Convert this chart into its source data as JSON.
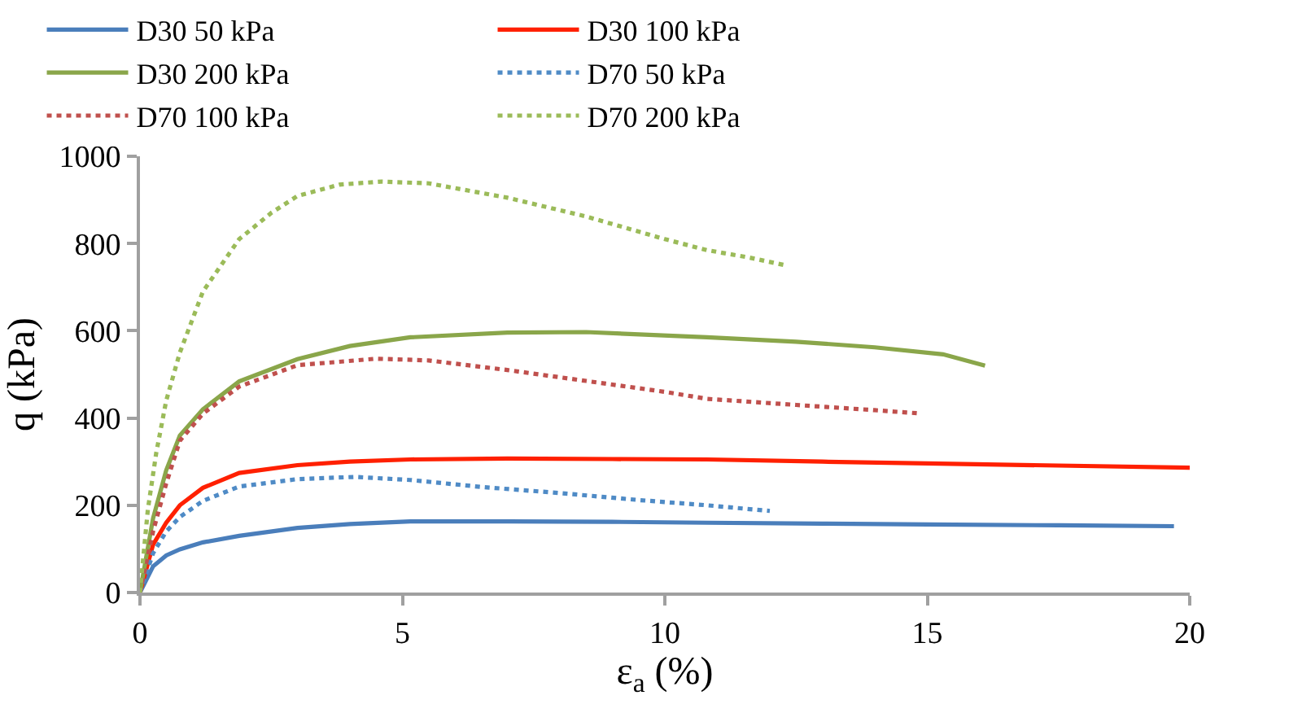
{
  "chart_data": {
    "type": "line",
    "xlabel": "ε$_{a}$ (%)",
    "ylabel": "q (kPa)",
    "xlim": [
      0,
      20
    ],
    "ylim": [
      0,
      1000
    ],
    "xticks": [
      0,
      5,
      10,
      15,
      20
    ],
    "yticks": [
      0,
      200,
      400,
      600,
      800,
      1000
    ],
    "grid": false,
    "legend": "top",
    "marker": "none",
    "series": [
      {
        "name": "D30 50 kPa",
        "color": "#4a7ebb",
        "line_style": "solid",
        "x": [
          0,
          0.25,
          0.5,
          0.76,
          1.2,
          1.89,
          3,
          4,
          5.15,
          7,
          9,
          10.8,
          13,
          15,
          17.5,
          19.7
        ],
        "values": [
          0,
          60,
          85,
          99,
          115,
          130,
          148,
          157,
          163,
          163,
          162,
          160,
          158,
          156,
          154,
          152
        ]
      },
      {
        "name": "D30 100 kPa",
        "color": "#ff2000",
        "line_style": "solid",
        "x": [
          0,
          0.25,
          0.5,
          0.76,
          1.2,
          1.89,
          3,
          4,
          5.15,
          7,
          9,
          10.8,
          13,
          15,
          17.5,
          20
        ],
        "values": [
          0,
          110,
          160,
          200,
          240,
          274,
          292,
          300,
          305,
          307,
          306,
          305,
          300,
          296,
          291,
          286
        ]
      },
      {
        "name": "D30 200 kPa",
        "color": "#8aa64a",
        "line_style": "solid",
        "x": [
          0,
          0.25,
          0.5,
          0.76,
          1.2,
          1.89,
          3,
          4,
          5.15,
          7,
          8.5,
          10.8,
          12.5,
          14,
          15.3,
          16.1
        ],
        "values": [
          0,
          170,
          280,
          360,
          420,
          484,
          535,
          565,
          585,
          596,
          597,
          585,
          575,
          562,
          546,
          520
        ]
      },
      {
        "name": "D70 50 kPa",
        "color": "#4f8bc6",
        "line_style": "dotted",
        "x": [
          0,
          0.25,
          0.5,
          0.76,
          1.2,
          1.89,
          3,
          4.1,
          5.15,
          6.5,
          8,
          9.5,
          10.8,
          12
        ],
        "values": [
          0,
          90,
          140,
          173,
          210,
          243,
          260,
          265,
          258,
          242,
          228,
          212,
          200,
          187
        ]
      },
      {
        "name": "D70 100 kPa",
        "color": "#c0504d",
        "line_style": "dotted",
        "x": [
          0,
          0.25,
          0.5,
          0.76,
          1.2,
          1.89,
          3,
          4.5,
          5.5,
          7,
          8.5,
          10,
          10.8,
          12.5,
          14,
          14.8
        ],
        "values": [
          0,
          140,
          250,
          348,
          410,
          472,
          521,
          536,
          532,
          510,
          485,
          460,
          444,
          430,
          418,
          411
        ]
      },
      {
        "name": "D70 200 kPa",
        "color": "#9bbb59",
        "line_style": "dotted",
        "x": [
          0,
          0.15,
          0.31,
          0.5,
          0.76,
          1.2,
          1.89,
          2.5,
          3,
          3.8,
          4.6,
          5.5,
          7,
          8.5,
          10,
          10.8,
          11.6,
          12.3
        ],
        "values": [
          0,
          190,
          320,
          440,
          550,
          690,
          810,
          870,
          909,
          935,
          942,
          938,
          905,
          862,
          810,
          785,
          768,
          750
        ]
      }
    ]
  }
}
